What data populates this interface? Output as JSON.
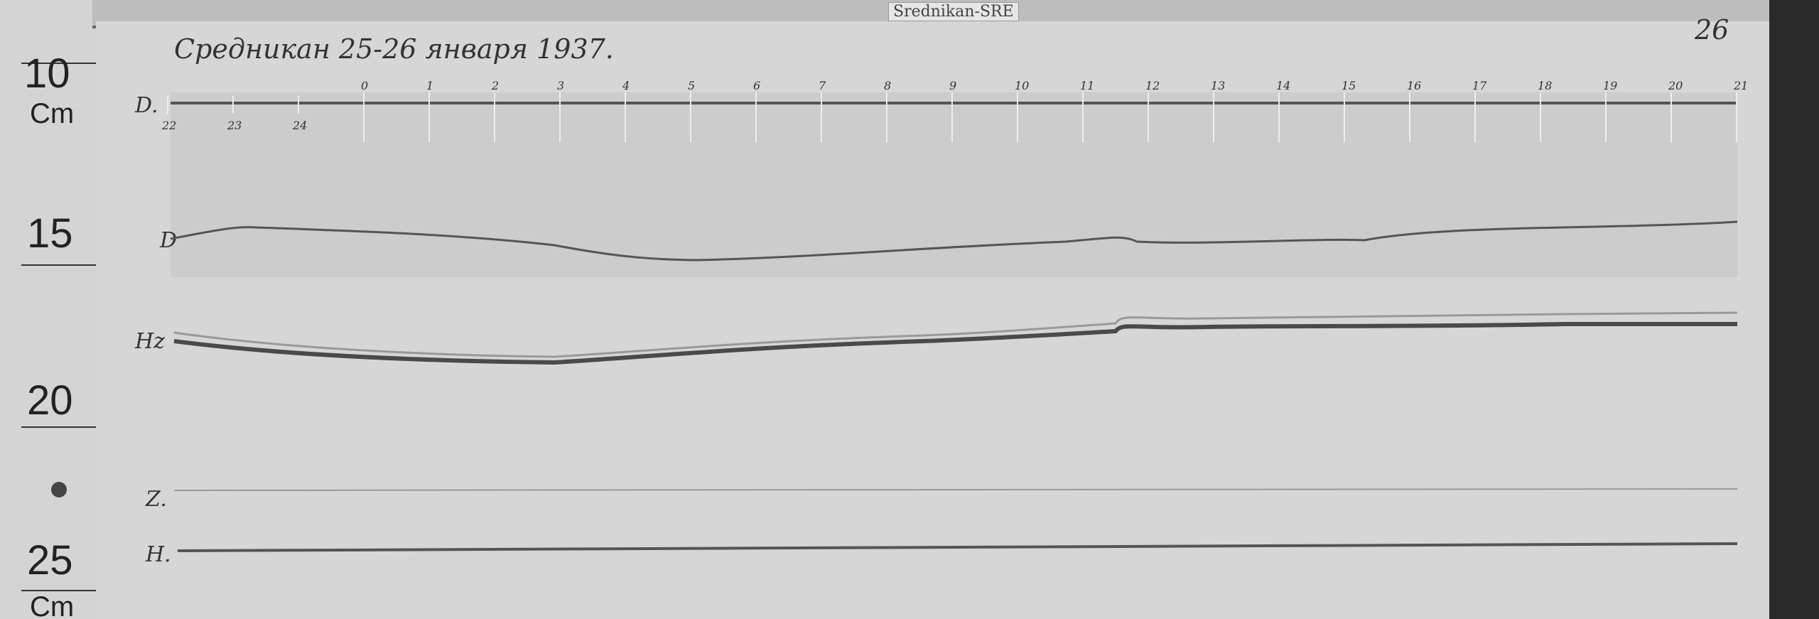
{
  "station_label": "Srednikan-SRE",
  "heading": "Средникан 25-26 января 1937.",
  "sheet_number": "26",
  "ruler": {
    "marks": [
      "10",
      "15",
      "20",
      "25"
    ],
    "unit": "Cm"
  },
  "traces": {
    "d_baseline": "D.",
    "d_curve": "D",
    "hz_curve": "Hz",
    "z_baseline": "Z.",
    "h_baseline": "H."
  },
  "hour_labels_top": [
    "0",
    "1",
    "2",
    "3",
    "4",
    "5",
    "6",
    "7",
    "8",
    "9",
    "10",
    "11",
    "12",
    "13",
    "14",
    "15",
    "16",
    "17",
    "18",
    "19",
    "20",
    "21"
  ],
  "hour_labels_bottom": [
    "22",
    "23",
    "24"
  ],
  "colors": {
    "paper": "#d6d6d6",
    "trace": "#555555",
    "background": "#2e2e2e"
  }
}
